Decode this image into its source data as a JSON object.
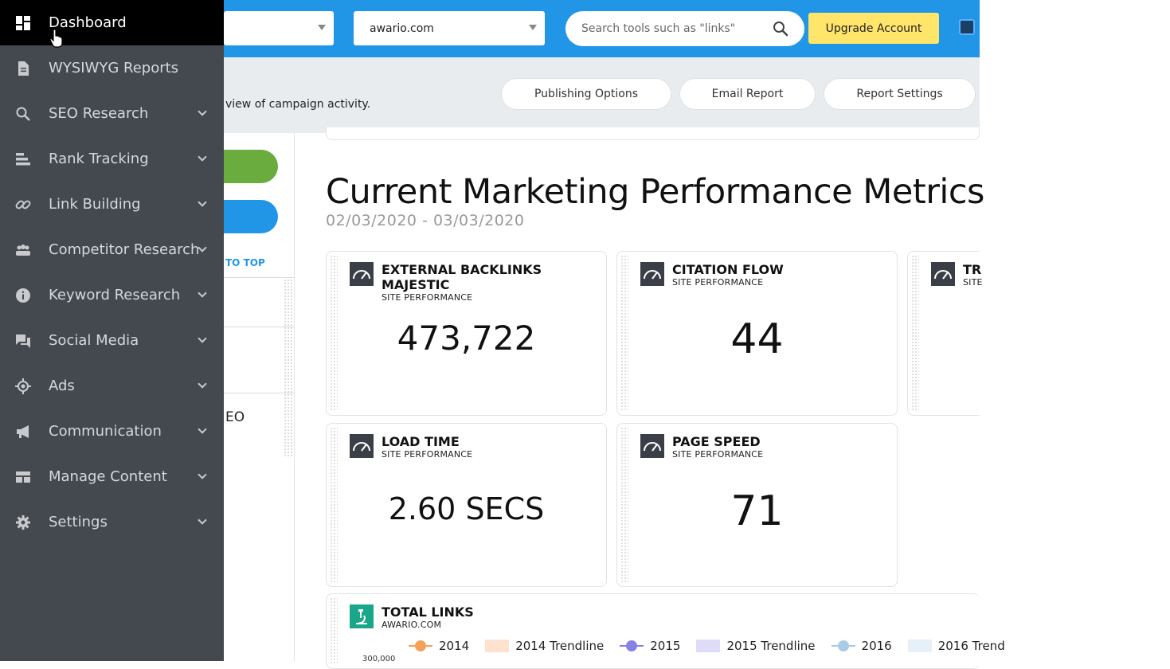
{
  "topbar": {
    "select1_value": "",
    "select2_value": "awario.com",
    "search_placeholder": "Search tools such as \"links\"",
    "upgrade_label": "Upgrade Account"
  },
  "subheader": {
    "description": "view of campaign activity.",
    "buttons": [
      "Publishing Options",
      "Email Report",
      "Report Settings"
    ]
  },
  "left": {
    "to_top": "TO TOP",
    "seo_fragment": "EO"
  },
  "main": {
    "title": "Current Marketing Performance Metrics",
    "date_range": "02/03/2020 - 03/03/2020"
  },
  "cards": [
    {
      "title": "EXTERNAL BACKLINKS MAJESTIC",
      "subtitle": "SITE PERFORMANCE",
      "value": "473,722"
    },
    {
      "title": "CITATION FLOW",
      "subtitle": "SITE PERFORMANCE",
      "value": "44"
    },
    {
      "title": "TR",
      "subtitle": "SITE",
      "value": ""
    },
    {
      "title": "LOAD TIME",
      "subtitle": "SITE PERFORMANCE",
      "value": "2.60 SECS"
    },
    {
      "title": "PAGE SPEED",
      "subtitle": "SITE PERFORMANCE",
      "value": "71"
    }
  ],
  "total_links": {
    "title": "TOTAL LINKS",
    "subtitle": "AWARIO.COM",
    "axis_tick": "300,000",
    "legend": [
      {
        "label": "2014",
        "kind": "line",
        "color": "#f4a15c"
      },
      {
        "label": "2014 Trendline",
        "kind": "box",
        "color": "#fde2cf"
      },
      {
        "label": "2015",
        "kind": "line",
        "color": "#8a82e2"
      },
      {
        "label": "2015 Trendline",
        "kind": "box",
        "color": "#dedcf7"
      },
      {
        "label": "2016",
        "kind": "line",
        "color": "#a9cbe4"
      },
      {
        "label": "2016 Trend",
        "kind": "box",
        "color": "#e6f0f8"
      }
    ]
  },
  "sidebar": {
    "items": [
      {
        "label": "Dashboard",
        "icon": "dashboard-icon",
        "active": true
      },
      {
        "label": "WYSIWYG Reports",
        "icon": "document-icon"
      },
      {
        "label": "SEO Research",
        "icon": "search-icon"
      },
      {
        "label": "Rank Tracking",
        "icon": "bar-chart-icon"
      },
      {
        "label": "Link Building",
        "icon": "link-icon"
      },
      {
        "label": "Competitor Research",
        "icon": "group-icon"
      },
      {
        "label": "Keyword Research",
        "icon": "info-icon"
      },
      {
        "label": "Social Media",
        "icon": "chat-icon"
      },
      {
        "label": "Ads",
        "icon": "target-icon"
      },
      {
        "label": "Communication",
        "icon": "megaphone-icon"
      },
      {
        "label": "Manage Content",
        "icon": "layout-icon"
      },
      {
        "label": "Settings",
        "icon": "gear-icon"
      }
    ]
  }
}
